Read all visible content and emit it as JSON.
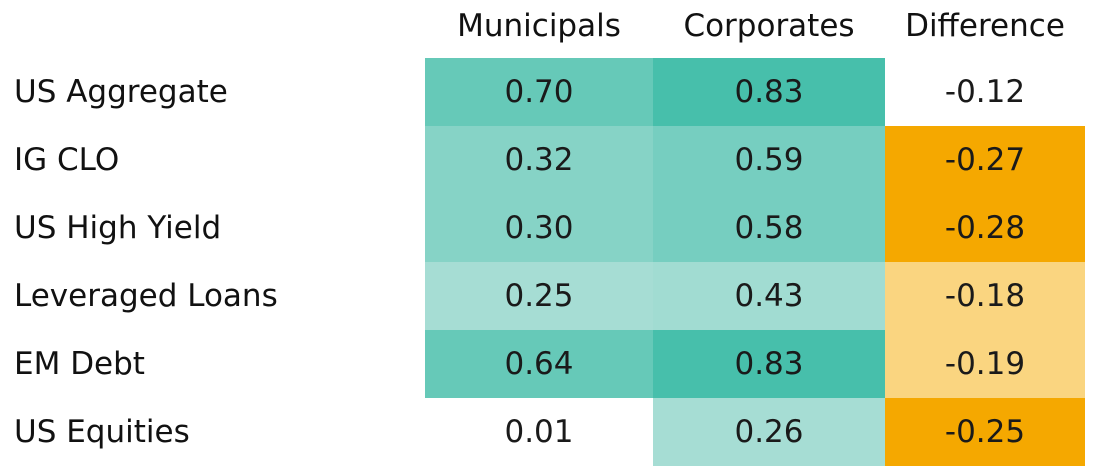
{
  "chart_data": {
    "type": "heatmap",
    "columns": [
      "Municipals",
      "Corporates",
      "Difference"
    ],
    "rows": [
      "US Aggregate",
      "IG CLO",
      "US High Yield",
      "Leveraged Loans",
      "EM Debt",
      "US Equities"
    ],
    "values": [
      [
        "0.70",
        "0.83",
        "-0.12"
      ],
      [
        "0.32",
        "0.59",
        "-0.27"
      ],
      [
        "0.30",
        "0.58",
        "-0.28"
      ],
      [
        "0.25",
        "0.43",
        "-0.18"
      ],
      [
        "0.64",
        "0.83",
        "-0.19"
      ],
      [
        "0.01",
        "0.26",
        "-0.25"
      ]
    ],
    "colors": [
      [
        "#66c9b8",
        "#47bfab",
        "#ffffff"
      ],
      [
        "#86d3c6",
        "#76cec0",
        "#f5a800"
      ],
      [
        "#86d3c6",
        "#76cec0",
        "#f5a800"
      ],
      [
        "#a6ddd4",
        "#a1dcd2",
        "#fad580"
      ],
      [
        "#66c9b8",
        "#47bfab",
        "#fad580"
      ],
      [
        "#ffffff",
        "#a6ddd4",
        "#f5a800"
      ]
    ]
  }
}
